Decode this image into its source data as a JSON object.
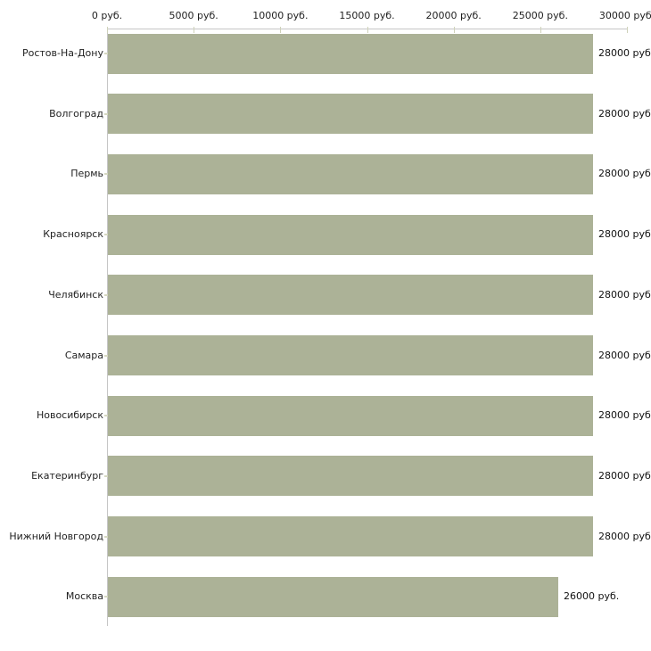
{
  "chart_data": {
    "type": "bar",
    "orientation": "horizontal",
    "title": "",
    "xlabel": "",
    "ylabel": "",
    "unit": "руб.",
    "categories": [
      "Ростов-На-Дону",
      "Волгоград",
      "Пермь",
      "Красноярск",
      "Челябинск",
      "Самара",
      "Новосибирск",
      "Екатеринбург",
      "Нижний Новгород",
      "Москва"
    ],
    "values": [
      28000,
      28000,
      28000,
      28000,
      28000,
      28000,
      28000,
      28000,
      28000,
      26000
    ],
    "value_labels": [
      "28000 руб.",
      "28000 руб.",
      "28000 руб.",
      "28000 руб.",
      "28000 руб.",
      "28000 руб.",
      "28000 руб.",
      "28000 руб.",
      "28000 руб.",
      "26000 руб."
    ],
    "x_ticks": [
      {
        "value": 0,
        "label": "0 руб."
      },
      {
        "value": 5000,
        "label": "5000 руб."
      },
      {
        "value": 10000,
        "label": "10000 руб."
      },
      {
        "value": 15000,
        "label": "15000 руб."
      },
      {
        "value": 20000,
        "label": "20000 руб."
      },
      {
        "value": 25000,
        "label": "25000 руб."
      },
      {
        "value": 30000,
        "label": "30000 руб."
      }
    ],
    "xlim": [
      0,
      30000
    ],
    "grid": false,
    "legend_position": "none",
    "colors": {
      "bar": "#acb297",
      "axis_line": "#c6c6c6",
      "axis_tick": "#cfd2ba",
      "category_tick": "#d6d8c2",
      "text": "#1f1f1f"
    }
  }
}
